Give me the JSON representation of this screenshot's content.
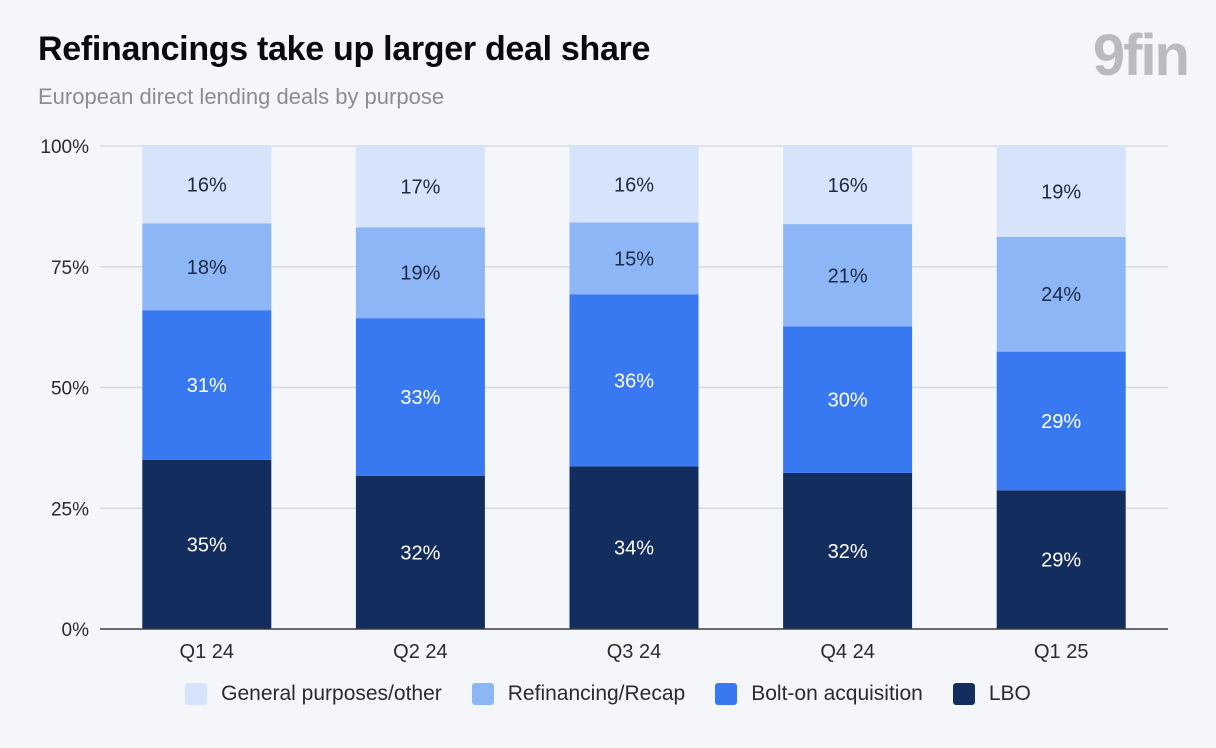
{
  "header": {
    "title": "Refinancings take up larger deal share",
    "subtitle": "European direct lending deals by purpose",
    "logo": "9fin"
  },
  "colors": {
    "general": "#d5e3fb",
    "refinancing": "#8db6f7",
    "bolt_on": "#3879f2",
    "lbo": "#132d5e",
    "grid": "#d8dade",
    "axis": "#2a2b2f"
  },
  "chart_data": {
    "type": "bar",
    "stacked": true,
    "categories": [
      "Q1 24",
      "Q2 24",
      "Q3 24",
      "Q4 24",
      "Q1 25"
    ],
    "series": [
      {
        "name": "LBO",
        "key": "lbo",
        "values": [
          35,
          32,
          34,
          32,
          29
        ],
        "labels": [
          "35%",
          "32%",
          "34%",
          "32%",
          "29%"
        ]
      },
      {
        "name": "Bolt-on acquisition",
        "key": "bolt_on",
        "values": [
          31,
          33,
          36,
          30,
          29
        ],
        "labels": [
          "31%",
          "33%",
          "36%",
          "30%",
          "29%"
        ]
      },
      {
        "name": "Refinancing/Recap",
        "key": "refinancing",
        "values": [
          18,
          19,
          15,
          21,
          24
        ],
        "labels": [
          "18%",
          "19%",
          "15%",
          "21%",
          "24%"
        ]
      },
      {
        "name": "General purposes/other",
        "key": "general",
        "values": [
          16,
          17,
          16,
          16,
          19
        ],
        "labels": [
          "16%",
          "17%",
          "16%",
          "16%",
          "19%"
        ]
      }
    ],
    "ylim": [
      0,
      100
    ],
    "yticks": [
      0,
      25,
      50,
      75,
      100
    ],
    "ytick_labels": [
      "0%",
      "25%",
      "50%",
      "75%",
      "100%"
    ],
    "grid": true,
    "legend_position": "bottom",
    "legend_order": [
      "General purposes/other",
      "Refinancing/Recap",
      "Bolt-on acquisition",
      "LBO"
    ]
  }
}
